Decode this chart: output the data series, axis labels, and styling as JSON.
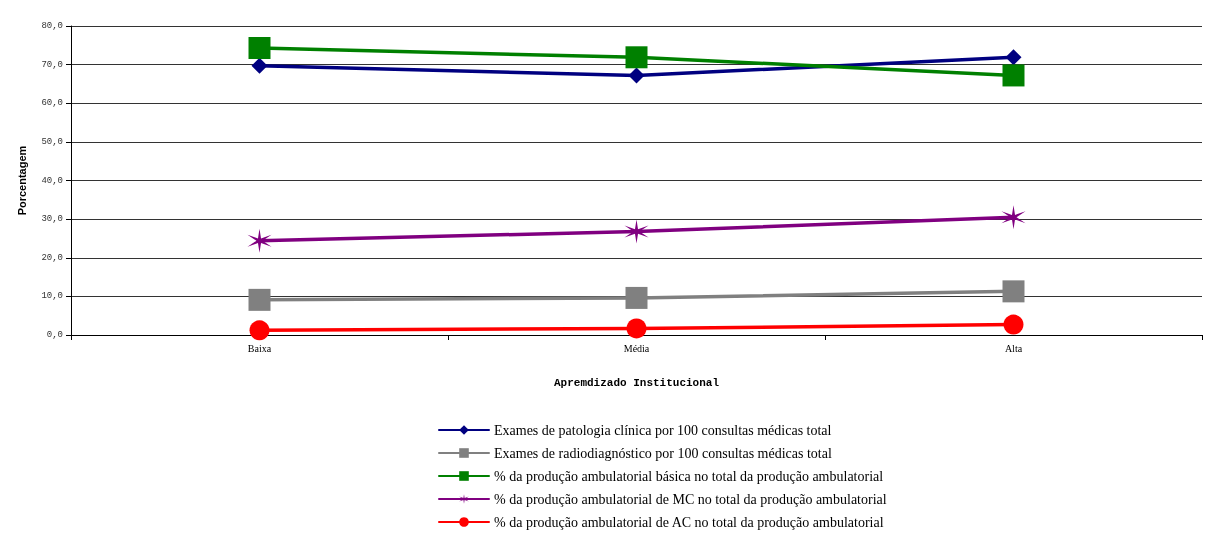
{
  "chart_data": {
    "type": "line",
    "xlabel": "Apremdizado Institucional",
    "ylabel": "Porcentagem",
    "categories": [
      "Baixa",
      "Média",
      "Alta"
    ],
    "series": [
      {
        "name": "Exames de patologia clínica por 100 consultas médicas total",
        "color": "#000080",
        "marker": "diamond",
        "values": [
          69.7,
          67.2,
          71.9
        ]
      },
      {
        "name": "Exames de radiodiagnóstico por 100 consultas médicas total",
        "color": "#808080",
        "marker": "square",
        "values": [
          9.1,
          9.6,
          11.3
        ]
      },
      {
        "name": "% da produção ambulatorial básica no total da produção ambulatorial",
        "color": "#008000",
        "marker": "square",
        "values": [
          74.3,
          71.9,
          67.2
        ]
      },
      {
        "name": "% da produção ambulatorial de MC no total da produção ambulatorial",
        "color": "#800080",
        "marker": "cross",
        "values": [
          24.4,
          26.8,
          30.5
        ]
      },
      {
        "name": "% da produção ambulatorial de AC no total da produção ambulatorial",
        "color": "#ff0000",
        "marker": "circle",
        "values": [
          1.2,
          1.7,
          2.7
        ]
      }
    ],
    "ylim": [
      0,
      80
    ],
    "yticks": [
      {
        "value": 0,
        "label": "0,0"
      },
      {
        "value": 10,
        "label": "10,0"
      },
      {
        "value": 20,
        "label": "20,0"
      },
      {
        "value": 30,
        "label": "30,0"
      },
      {
        "value": 40,
        "label": "40,0"
      },
      {
        "value": 50,
        "label": "50,0"
      },
      {
        "value": 60,
        "label": "60,0"
      },
      {
        "value": 70,
        "label": "70,0"
      },
      {
        "value": 80,
        "label": "80,0"
      }
    ],
    "grid": "y",
    "legend": "bottom",
    "line_style": "solid"
  }
}
